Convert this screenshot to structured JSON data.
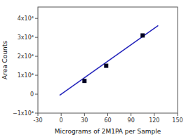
{
  "chart_data": {
    "type": "scatter",
    "xlabel": "Micrograms of 2M1PA per Sample",
    "ylabel": "Area Counts",
    "series": [
      {
        "type": "line",
        "line_style": "solid",
        "color": "#2222bb",
        "x": [
          -2,
          125
        ],
        "values": [
          -580,
          36250
        ]
      },
      {
        "type": "scatter",
        "marker": "square",
        "color": "#000022",
        "x": [
          30,
          58,
          105
        ],
        "values": [
          7000,
          15000,
          31000
        ]
      }
    ],
    "xlim": [
      -30,
      150
    ],
    "xticks": [
      -30,
      0,
      30,
      60,
      90,
      120,
      150
    ],
    "ylim": [
      -10000,
      46000
    ],
    "yticks": [
      {
        "value": -10000,
        "label": "−1x10⁴"
      },
      0,
      {
        "value": 10000,
        "label": "1x10⁴"
      },
      {
        "value": 20000,
        "label": "2x10⁴"
      },
      {
        "value": 30000,
        "label": "3x10⁴"
      },
      {
        "value": 40000,
        "label": "4x10⁴"
      }
    ],
    "grid": false
  }
}
